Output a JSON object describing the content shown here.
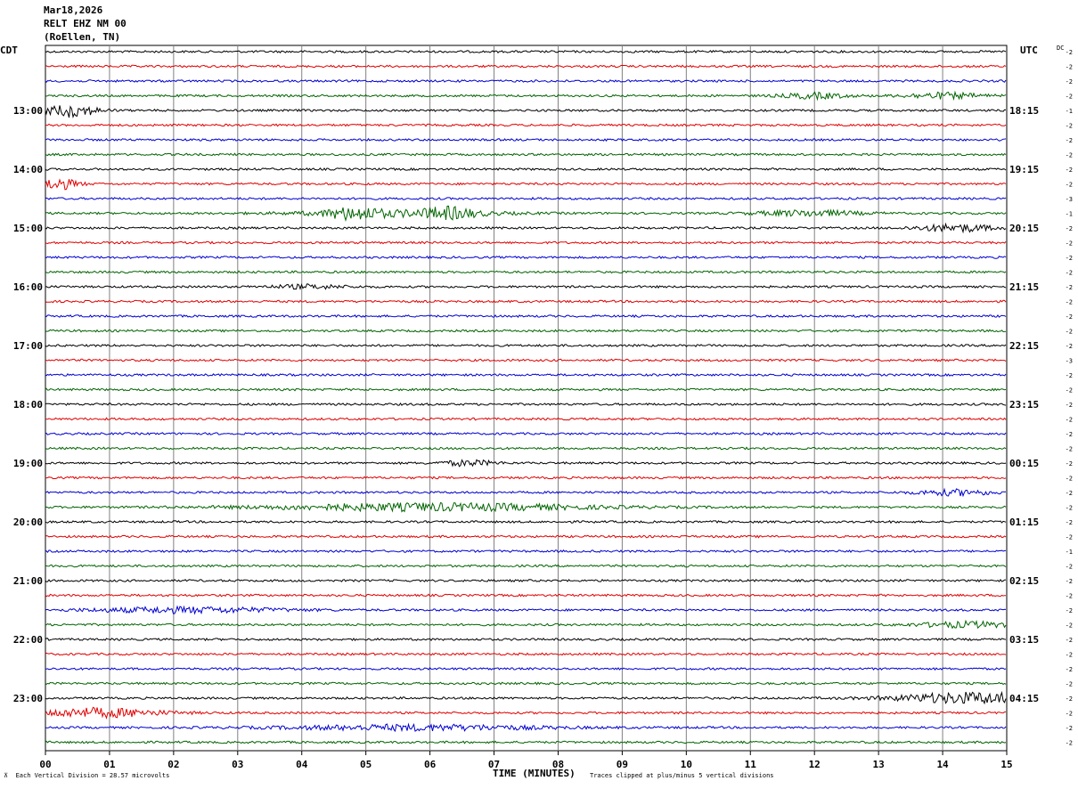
{
  "header": {
    "date": "Mar18,2026",
    "station": "RELT EHZ NM 00",
    "location": "(RoEllen, TN)"
  },
  "left_tz": "CDT",
  "right_tz": "UTC",
  "dc_label": "DC",
  "footer": {
    "scale_label": "Each Vertical Division =   28.57 microvolts",
    "clip_note": "Traces clipped at plus/minus 5 vertical divisions"
  },
  "colors": {
    "black": "#000000",
    "red": "#e00000",
    "blue": "#0000d0",
    "green": "#006400",
    "grid": "#808080"
  },
  "chart_data": {
    "type": "helicorder",
    "xlabel": "TIME (MINUTES)",
    "x_ticks": [
      "00",
      "01",
      "02",
      "03",
      "04",
      "05",
      "06",
      "07",
      "08",
      "09",
      "10",
      "11",
      "12",
      "13",
      "14",
      "15"
    ],
    "xlim": [
      0,
      15
    ],
    "left_hour_labels": [
      "13:00",
      "14:00",
      "15:00",
      "16:00",
      "17:00",
      "18:00",
      "19:00",
      "20:00",
      "21:00",
      "22:00",
      "23:00"
    ],
    "right_hour_labels": [
      "18:15",
      "19:15",
      "20:15",
      "21:15",
      "22:15",
      "23:15",
      "00:15",
      "01:15",
      "02:15",
      "03:15",
      "04:15"
    ],
    "trace_colors_cycle": [
      "black",
      "red",
      "blue",
      "green"
    ],
    "traces_count": 48,
    "dc_offsets": [
      "-2",
      "-2",
      "-2",
      "-2",
      "-1",
      "-2",
      "-2",
      "-2",
      "-2",
      "-2",
      "-3",
      "-1",
      "-2",
      "-2",
      "-2",
      "-2",
      "-2",
      "-2",
      "-2",
      "-2",
      "-2",
      "-3",
      "-2",
      "-2",
      "-2",
      "-2",
      "-2",
      "-2",
      "-2",
      "-2",
      "-2",
      "-2",
      "-2",
      "-2",
      "-1",
      "-2",
      "-2",
      "-2",
      "-2",
      "-2",
      "-2",
      "-2",
      "-2",
      "-2",
      "-2",
      "-2",
      "-2",
      "-2"
    ]
  }
}
